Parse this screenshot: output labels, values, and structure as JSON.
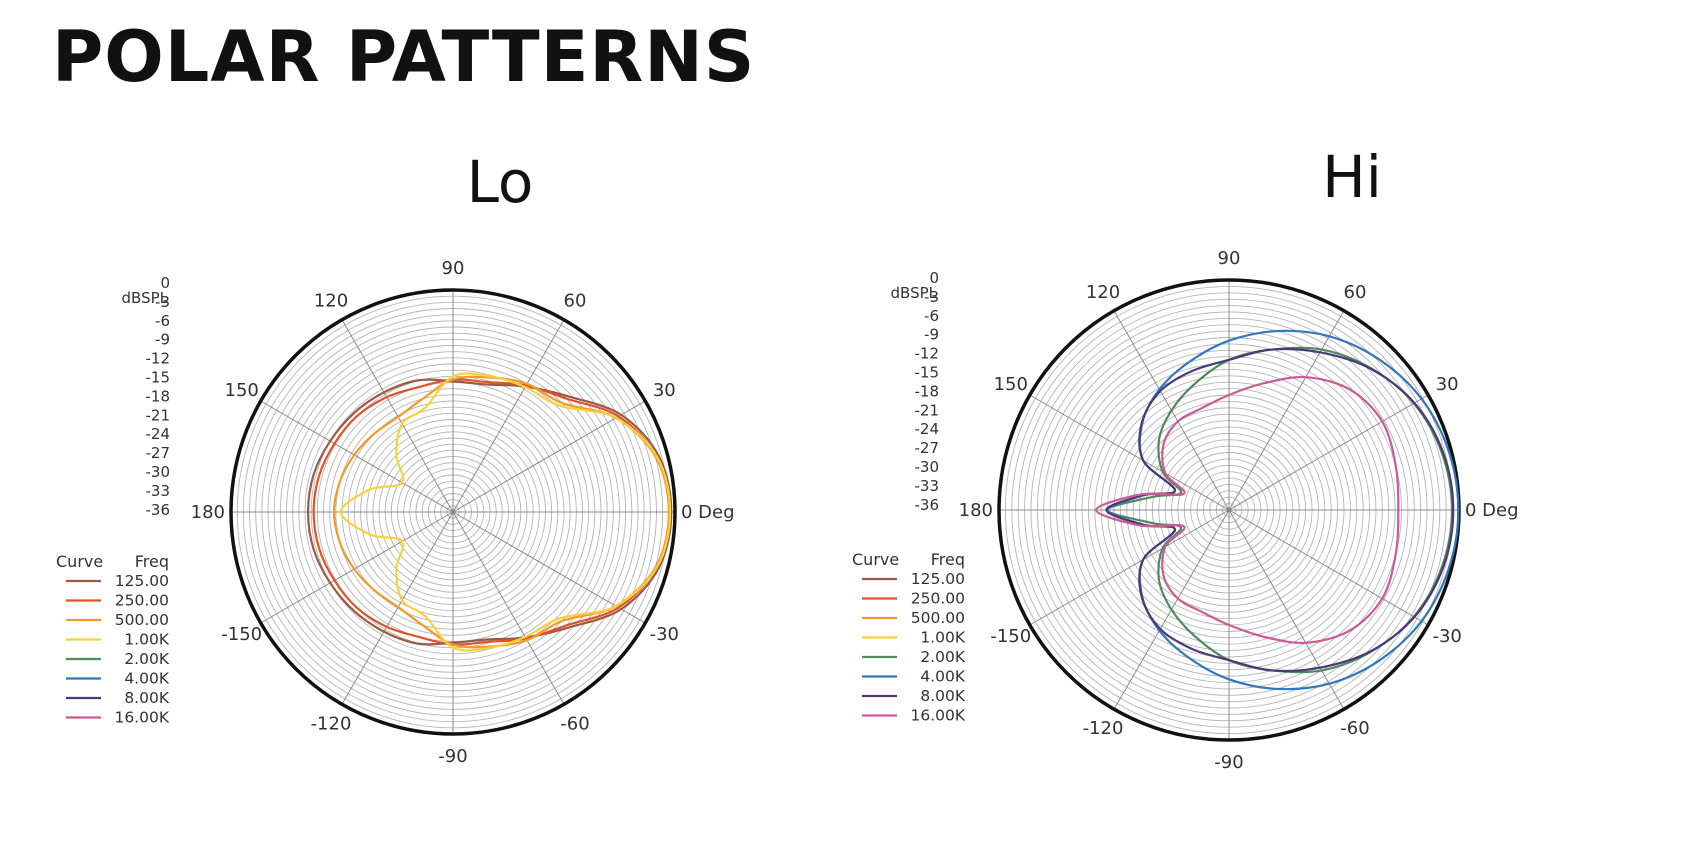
{
  "page": {
    "title": "POLAR PATTERNS"
  },
  "chart_data": [
    {
      "type": "polar",
      "title": "Lo",
      "radial_unit": "dBSPL",
      "radial_ticks": [
        "0",
        "-3",
        "-6",
        "-9",
        "-12",
        "-15",
        "-18",
        "-21",
        "-24",
        "-27",
        "-30",
        "-33",
        "-36"
      ],
      "rlim": [
        -36,
        0
      ],
      "angle_labels": [
        {
          "deg": 0,
          "label": "0 Deg"
        },
        {
          "deg": 30,
          "label": "30"
        },
        {
          "deg": 60,
          "label": "60"
        },
        {
          "deg": 90,
          "label": "90"
        },
        {
          "deg": 120,
          "label": "120"
        },
        {
          "deg": 150,
          "label": "150"
        },
        {
          "deg": 180,
          "label": "180"
        },
        {
          "deg": -150,
          "label": "-150"
        },
        {
          "deg": -120,
          "label": "-120"
        },
        {
          "deg": -90,
          "label": "-90"
        },
        {
          "deg": -60,
          "label": "-60"
        },
        {
          "deg": -30,
          "label": "-30"
        }
      ],
      "legend": {
        "header": [
          "Curve",
          "Freq"
        ],
        "entries": [
          {
            "freq": "125.00",
            "color": "#9a5a44"
          },
          {
            "freq": "250.00",
            "color": "#e0522a"
          },
          {
            "freq": "500.00",
            "color": "#f39a2a"
          },
          {
            "freq": "1.00K",
            "color": "#f7d23a"
          },
          {
            "freq": "2.00K",
            "color": "#4f8a5e"
          },
          {
            "freq": "4.00K",
            "color": "#2f78c0"
          },
          {
            "freq": "8.00K",
            "color": "#4a3a78"
          },
          {
            "freq": "16.00K",
            "color": "#cc5a95"
          }
        ]
      },
      "angles": [
        0,
        15,
        30,
        45,
        60,
        75,
        90,
        105,
        120,
        135,
        150,
        165,
        180,
        195,
        210,
        225,
        240,
        255,
        270,
        285,
        300,
        315,
        330,
        345
      ],
      "series": [
        {
          "name": "125.00",
          "color": "#9a5a44",
          "values": [
            -0.6,
            -1.4,
            -4.5,
            -9.5,
            -12.5,
            -14.6,
            -14.8,
            -13.9,
            -13.6,
            -13.3,
            -13.0,
            -12.6,
            -12.5,
            -12.6,
            -13.0,
            -13.3,
            -13.6,
            -13.9,
            -14.8,
            -14.6,
            -12.5,
            -9.5,
            -4.5,
            -1.4
          ]
        },
        {
          "name": "250.00",
          "color": "#e0522a",
          "values": [
            -0.9,
            -1.8,
            -5.0,
            -10.0,
            -12.3,
            -14.2,
            -14.5,
            -15.0,
            -14.5,
            -14.0,
            -13.8,
            -13.5,
            -13.4,
            -13.5,
            -13.8,
            -14.0,
            -14.5,
            -15.0,
            -14.5,
            -14.2,
            -12.3,
            -10.0,
            -5.0,
            -1.8
          ]
        },
        {
          "name": "500.00",
          "color": "#f39a2a",
          "values": [
            -1.0,
            -1.9,
            -5.5,
            -11.0,
            -12.0,
            -13.4,
            -14.5,
            -17.0,
            -18.2,
            -18.0,
            -17.5,
            -17.0,
            -16.7,
            -17.0,
            -17.5,
            -18.0,
            -18.2,
            -17.0,
            -14.5,
            -13.4,
            -12.0,
            -11.0,
            -5.5,
            -1.9
          ]
        },
        {
          "name": "1.00K",
          "color": "#f7d23a",
          "values": [
            -0.8,
            -1.7,
            -5.5,
            -11.6,
            -12.6,
            -13.2,
            -14.0,
            -18.5,
            -19.5,
            -23.0,
            -26.5,
            -22.0,
            -17.8,
            -22.0,
            -26.5,
            -23.0,
            -19.5,
            -18.5,
            -14.0,
            -13.2,
            -12.6,
            -11.6,
            -5.5,
            -1.7
          ]
        }
      ]
    },
    {
      "type": "polar",
      "title": "Hi",
      "radial_unit": "dBSPL",
      "radial_ticks": [
        "0",
        "-3",
        "-6",
        "-9",
        "-12",
        "-15",
        "-18",
        "-21",
        "-24",
        "-27",
        "-30",
        "-33",
        "-36"
      ],
      "rlim": [
        -36,
        0
      ],
      "angle_labels": [
        {
          "deg": 0,
          "label": "0 Deg"
        },
        {
          "deg": 30,
          "label": "30"
        },
        {
          "deg": 60,
          "label": "60"
        },
        {
          "deg": 90,
          "label": "90"
        },
        {
          "deg": 120,
          "label": "120"
        },
        {
          "deg": 150,
          "label": "150"
        },
        {
          "deg": 180,
          "label": "180"
        },
        {
          "deg": -150,
          "label": "-150"
        },
        {
          "deg": -120,
          "label": "-120"
        },
        {
          "deg": -90,
          "label": "-90"
        },
        {
          "deg": -60,
          "label": "-60"
        },
        {
          "deg": -30,
          "label": "-30"
        }
      ],
      "legend": {
        "header": [
          "Curve",
          "Freq"
        ],
        "entries": [
          {
            "freq": "125.00",
            "color": "#9a5a44"
          },
          {
            "freq": "250.00",
            "color": "#e0522a"
          },
          {
            "freq": "500.00",
            "color": "#f39a2a"
          },
          {
            "freq": "1.00K",
            "color": "#f7d23a"
          },
          {
            "freq": "2.00K",
            "color": "#4f8a5e"
          },
          {
            "freq": "4.00K",
            "color": "#2f78c0"
          },
          {
            "freq": "8.00K",
            "color": "#4a3a78"
          },
          {
            "freq": "16.00K",
            "color": "#cc5a95"
          }
        ]
      },
      "angles": [
        0,
        15,
        30,
        45,
        60,
        75,
        90,
        105,
        120,
        135,
        150,
        160,
        170,
        180,
        190,
        200,
        210,
        225,
        240,
        255,
        270,
        285,
        300,
        315,
        330,
        345
      ],
      "series": [
        {
          "name": "2.00K",
          "color": "#4f8a5e",
          "values": [
            -1.1,
            -1.5,
            -2.6,
            -4.6,
            -7.0,
            -10.0,
            -12.5,
            -15.5,
            -18.0,
            -20.5,
            -24.0,
            -28.0,
            -24.0,
            -17.0,
            -24.0,
            -28.0,
            -24.0,
            -20.5,
            -18.0,
            -15.5,
            -12.5,
            -10.0,
            -7.0,
            -4.6,
            -2.6,
            -1.5
          ]
        },
        {
          "name": "4.00K",
          "color": "#2f78c0",
          "values": [
            -0.1,
            -0.4,
            -1.2,
            -2.7,
            -4.6,
            -7.0,
            -9.5,
            -12.0,
            -14.2,
            -16.8,
            -20.5,
            -27.0,
            -22.5,
            -17.0,
            -22.5,
            -27.0,
            -20.5,
            -16.8,
            -14.2,
            -12.0,
            -9.5,
            -7.0,
            -4.6,
            -2.7,
            -1.2,
            -0.4
          ]
        },
        {
          "name": "8.00K",
          "color": "#4a3a78",
          "values": [
            -0.9,
            -1.3,
            -2.5,
            -4.7,
            -7.5,
            -10.0,
            -12.5,
            -13.5,
            -14.5,
            -16.7,
            -20.5,
            -27.0,
            -22.5,
            -16.8,
            -22.5,
            -27.0,
            -20.5,
            -16.7,
            -14.5,
            -13.5,
            -12.5,
            -10.0,
            -7.5,
            -4.7,
            -2.5,
            -1.3
          ]
        },
        {
          "name": "16.00K",
          "color": "#cc5a95",
          "values": [
            -9.5,
            -9.0,
            -8.3,
            -9.3,
            -12.0,
            -15.5,
            -18.0,
            -19.5,
            -20.0,
            -21.5,
            -24.5,
            -28.5,
            -22.0,
            -15.2,
            -22.0,
            -28.5,
            -24.5,
            -21.5,
            -20.0,
            -19.5,
            -18.0,
            -15.5,
            -12.0,
            -9.3,
            -8.3,
            -9.0
          ]
        }
      ]
    }
  ]
}
